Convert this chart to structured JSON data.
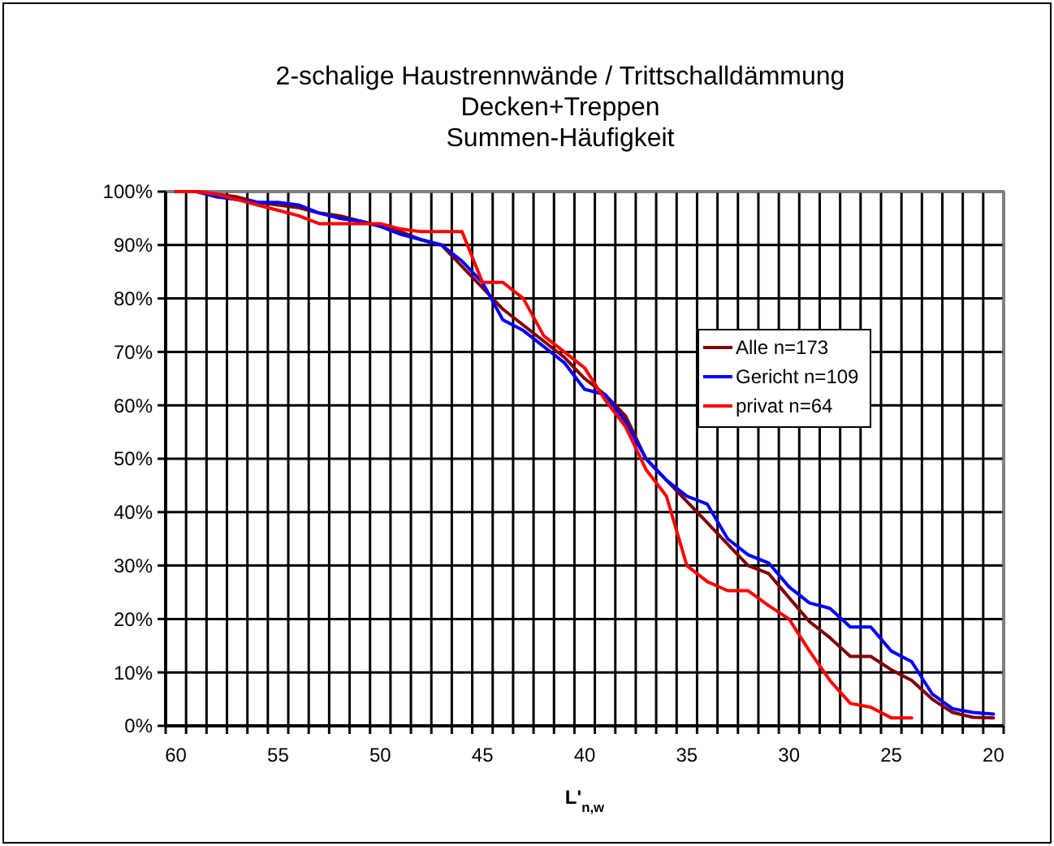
{
  "chart_data": {
    "type": "line",
    "title": "2-schalige Haustrennwände / Trittschalldämmung\nDecken+Treppen\nSummen-Häufigkeit",
    "xlabel": "L'$_{n,w}$",
    "x": [
      60,
      59,
      58,
      57,
      56,
      55,
      54,
      53,
      52,
      51,
      50,
      49,
      48,
      47,
      46,
      45,
      44,
      43,
      42,
      41,
      40,
      39,
      38,
      37,
      36,
      35,
      34,
      33,
      32,
      31,
      30,
      29,
      28,
      27,
      26,
      25,
      24,
      23,
      22,
      21,
      20
    ],
    "series": [
      {
        "name": "Alle n=173",
        "color": "#800000",
        "values": [
          100,
          100,
          99.5,
          99,
          98,
          97.5,
          97,
          96,
          95.5,
          94.5,
          93.5,
          92.5,
          91,
          90,
          86,
          82,
          78,
          75,
          72,
          69,
          65,
          62,
          58,
          50,
          46,
          42,
          38,
          34,
          30,
          28.5,
          24,
          19.5,
          16.5,
          13,
          13,
          10.5,
          8.5,
          5,
          2.5,
          1.6,
          1.5
        ]
      },
      {
        "name": "Gericht n=109",
        "color": "#0000ff",
        "values": [
          100,
          100,
          99,
          98.5,
          98,
          98,
          97.5,
          96,
          95,
          94.5,
          93.5,
          92,
          91,
          90,
          87,
          83,
          76,
          74,
          71,
          68,
          63,
          62,
          57,
          50,
          46,
          43,
          41.5,
          35,
          32,
          30.5,
          26,
          23,
          22,
          18.5,
          18.5,
          14,
          12,
          6,
          3.2,
          2.5,
          2.2
        ]
      },
      {
        "name": "privat n=64",
        "color": "#ff0000",
        "values": [
          100,
          100,
          99.5,
          98.5,
          97.5,
          96.5,
          95.5,
          94,
          94,
          94,
          94,
          93,
          92.5,
          92.5,
          92.5,
          83,
          83,
          80,
          73,
          70,
          67,
          61,
          56,
          48,
          43,
          30,
          27,
          25.3,
          25.3,
          22.5,
          20,
          14,
          8.5,
          4.2,
          3.5,
          1.5,
          1.5,
          null,
          null,
          null,
          null
        ]
      }
    ],
    "xlim": [
      60.5,
      19.5
    ],
    "xticks": [
      {
        "value": 60.5,
        "label": null
      },
      60,
      {
        "value": 59.5,
        "label": null
      },
      {
        "value": 58.5,
        "label": null
      },
      {
        "value": 57.5,
        "label": null
      },
      {
        "value": 56.5,
        "label": null
      },
      {
        "value": 55.5,
        "label": null
      },
      55,
      {
        "value": 54.5,
        "label": null
      },
      {
        "value": 53.5,
        "label": null
      },
      {
        "value": 52.5,
        "label": null
      },
      {
        "value": 51.5,
        "label": null
      },
      {
        "value": 50.5,
        "label": null
      },
      50,
      {
        "value": 49.5,
        "label": null
      },
      {
        "value": 48.5,
        "label": null
      },
      {
        "value": 47.5,
        "label": null
      },
      {
        "value": 46.5,
        "label": null
      },
      {
        "value": 45.5,
        "label": null
      },
      45,
      {
        "value": 44.5,
        "label": null
      },
      {
        "value": 43.5,
        "label": null
      },
      {
        "value": 42.5,
        "label": null
      },
      {
        "value": 41.5,
        "label": null
      },
      {
        "value": 40.5,
        "label": null
      },
      40,
      {
        "value": 39.5,
        "label": null
      },
      {
        "value": 38.5,
        "label": null
      },
      {
        "value": 37.5,
        "label": null
      },
      {
        "value": 36.5,
        "label": null
      },
      {
        "value": 35.5,
        "label": null
      },
      35,
      {
        "value": 34.5,
        "label": null
      },
      {
        "value": 33.5,
        "label": null
      },
      {
        "value": 32.5,
        "label": null
      },
      {
        "value": 31.5,
        "label": null
      },
      {
        "value": 30.5,
        "label": null
      },
      30,
      {
        "value": 29.5,
        "label": null
      },
      {
        "value": 28.5,
        "label": null
      },
      {
        "value": 27.5,
        "label": null
      },
      {
        "value": 26.5,
        "label": null
      },
      {
        "value": 25.5,
        "label": null
      },
      25,
      {
        "value": 24.5,
        "label": null
      },
      {
        "value": 23.5,
        "label": null
      },
      {
        "value": 22.5,
        "label": null
      },
      {
        "value": 21.5,
        "label": null
      },
      {
        "value": 20.5,
        "label": null
      },
      20,
      {
        "value": 19.5,
        "label": null
      }
    ],
    "ylim": [
      0,
      100
    ],
    "yticks": [
      {
        "value": 0,
        "label": "0%"
      },
      {
        "value": 10,
        "label": "10%"
      },
      {
        "value": 20,
        "label": "20%"
      },
      {
        "value": 30,
        "label": "30%"
      },
      {
        "value": 40,
        "label": "40%"
      },
      {
        "value": 50,
        "label": "50%"
      },
      {
        "value": 60,
        "label": "60%"
      },
      {
        "value": 70,
        "label": "70%"
      },
      {
        "value": 80,
        "label": "80%"
      },
      {
        "value": 90,
        "label": "90%"
      },
      {
        "value": 100,
        "label": "100%"
      }
    ],
    "grid": true,
    "legend": "right",
    "marker": "none",
    "line_style": "solid"
  }
}
